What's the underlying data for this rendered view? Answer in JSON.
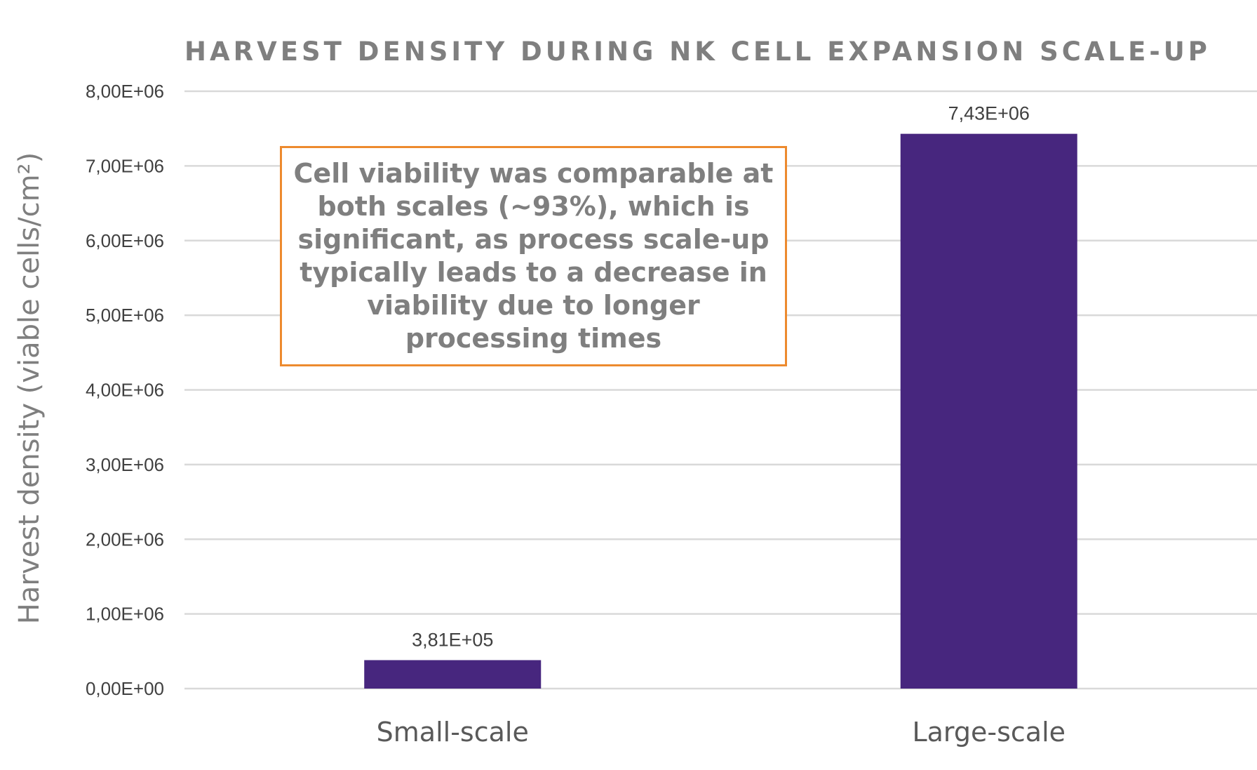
{
  "chart_data": {
    "type": "bar",
    "title": "HARVEST DENSITY DURING NK CELL EXPANSION SCALE-UP",
    "xlabel": "",
    "ylabel": "Harvest density (viable cells/cm²)",
    "categories": [
      "Small-scale",
      "Large-scale"
    ],
    "values": [
      381000,
      7430000
    ],
    "data_labels": [
      "3,81E+05",
      "7,43E+06"
    ],
    "ylim": [
      0,
      8000000
    ],
    "yticks": [
      0,
      1000000,
      2000000,
      3000000,
      4000000,
      5000000,
      6000000,
      7000000,
      8000000
    ],
    "ytick_labels": [
      "0,00E+00",
      "1,00E+06",
      "2,00E+06",
      "3,00E+06",
      "4,00E+06",
      "5,00E+06",
      "6,00E+06",
      "7,00E+06",
      "8,00E+06"
    ],
    "grid": true,
    "bar_color": "#47267e"
  },
  "annotation": {
    "text": "Cell viability was comparable at both scales (~93%), which is significant, as process scale-up typically leads to a decrease in viability due to longer processing times",
    "border_color": "#ed8a2e"
  }
}
